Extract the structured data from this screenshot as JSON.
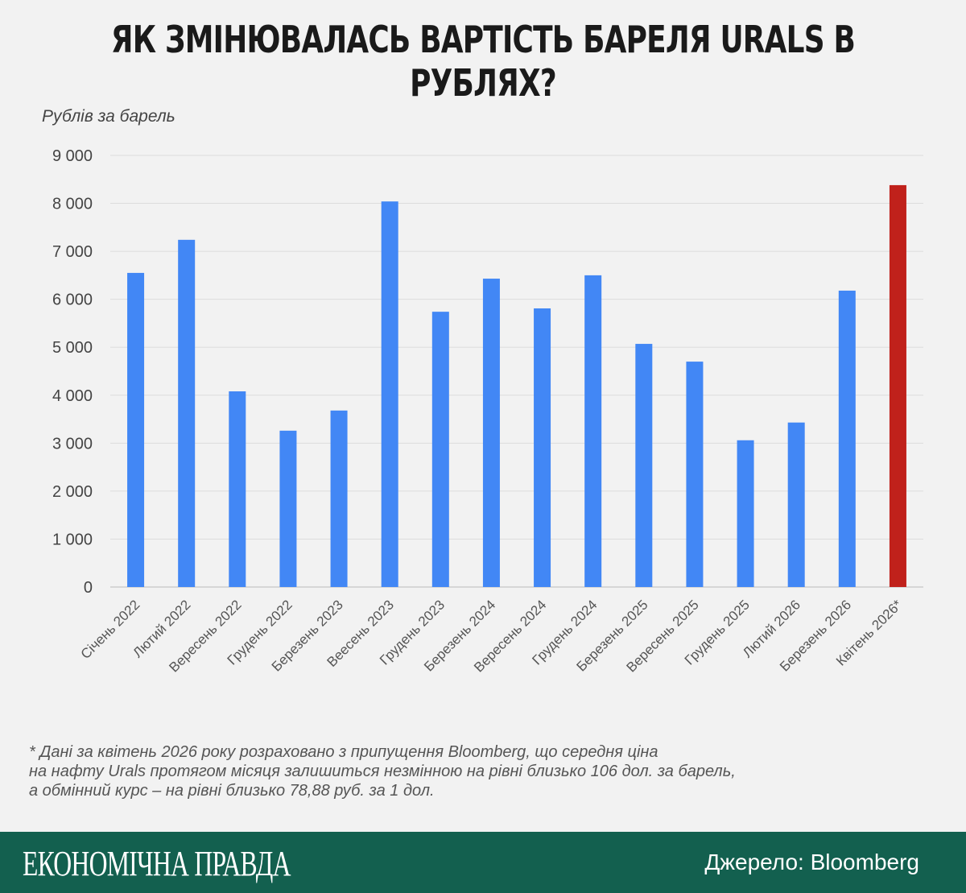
{
  "title": "Як змінювалась вартість бареля Urals в рублях?",
  "chart_data": {
    "type": "bar",
    "title": "Як змінювалась вартість бареля Urals в рублях?",
    "ylabel": "Рублів за барель",
    "xlabel": "",
    "ylim": [
      0,
      9000
    ],
    "yticks": [
      0,
      1000,
      2000,
      3000,
      4000,
      5000,
      6000,
      7000,
      8000,
      9000
    ],
    "ytick_labels": [
      "0",
      "1 000",
      "2 000",
      "3 000",
      "4 000",
      "5 000",
      "6 000",
      "7 000",
      "8 000",
      "9 000"
    ],
    "grid": true,
    "categories": [
      "Січень 2022",
      "Лютий 2022",
      "Вересень 2022",
      "Грудень 2022",
      "Березень 2023",
      "Веесень 2023",
      "Грудень 2023",
      "Березень 2024",
      "Вересень 2024",
      "Грудень 2024",
      "Березень 2025",
      "Вересень 2025",
      "Грудень 2025",
      "Лютий 2026",
      "Березень 2026",
      "Квітень 2026*"
    ],
    "values": [
      6550,
      7240,
      4080,
      3260,
      3680,
      8040,
      5740,
      6430,
      5810,
      6500,
      5070,
      4700,
      3060,
      3430,
      6180,
      8380
    ],
    "colors": {
      "default": "#4287f5",
      "highlight": "#c0211b"
    },
    "highlight_index": 15
  },
  "footnote": [
    "* Дані за квітень 2026 року розраховано з припущення Bloomberg, що середня ціна",
    "на нафту Urals протягом місяця залишиться незмінною на рівні близько 106 дол. за барель,",
    "а обмінний курс – на рівні близько 78,88 руб. за 1 дол."
  ],
  "footer": {
    "logo": "ЕКОНОМІЧНА ПРАВДА",
    "source": "Джерело: Bloomberg"
  }
}
